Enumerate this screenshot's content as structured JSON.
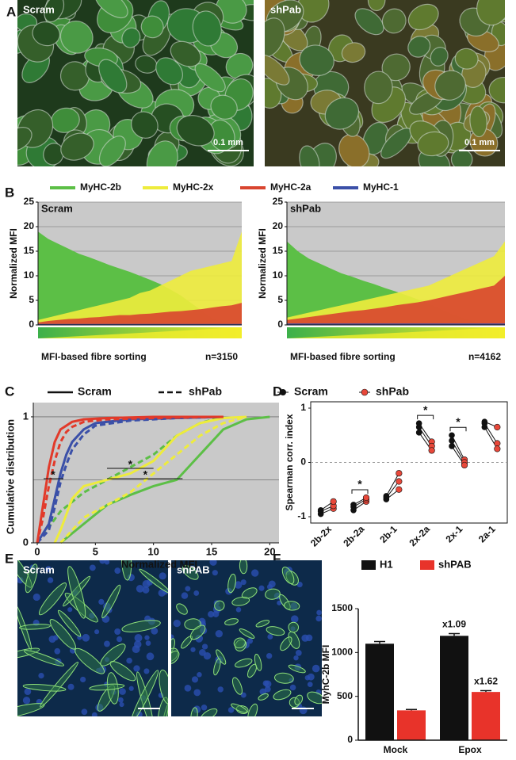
{
  "panel_labels": [
    "A",
    "B",
    "C",
    "D",
    "E",
    "F"
  ],
  "images": [
    {
      "label": "Scram",
      "scale_bar": "0.1 mm"
    },
    {
      "label": "shPab",
      "scale_bar": "0.1 mm"
    },
    {
      "label": "Scram"
    },
    {
      "label": "shPAB"
    }
  ],
  "chart_data": [
    {
      "type": "area",
      "title": "Scram",
      "ylabel": "Normalized MFI",
      "xlabel": "MFI-based fibre sorting",
      "note": "n=3150",
      "ylim": [
        0,
        25
      ],
      "yticks": [
        0,
        5,
        10,
        15,
        20,
        25
      ],
      "grid": true,
      "series": [
        {
          "name": "MyHC-2b",
          "color": "#5cbf46",
          "values": [
            19,
            17.5,
            16.5,
            15.5,
            14.5,
            13.8,
            13,
            12.2,
            11.5,
            10.8,
            10,
            9.2,
            8.3,
            7.2,
            6,
            4.5,
            3,
            1.5,
            0.5,
            0.2,
            0
          ]
        },
        {
          "name": "MyHC-2x",
          "color": "#eeec3c",
          "values": [
            1,
            1.5,
            2,
            2.5,
            3,
            3.5,
            4,
            4.5,
            5,
            5.5,
            6.5,
            7,
            8,
            9,
            10,
            11,
            11.5,
            12,
            12.5,
            13,
            19
          ]
        },
        {
          "name": "MyHC-2a",
          "color": "#d9452f",
          "values": [
            0.5,
            0.8,
            1,
            1.2,
            1.3,
            1.5,
            1.6,
            1.8,
            2,
            2,
            2.2,
            2.3,
            2.5,
            2.7,
            2.8,
            3,
            3.2,
            3.5,
            3.8,
            4,
            4.5
          ]
        },
        {
          "name": "MyHC-1",
          "color": "#3b50a8",
          "values": [
            0.2,
            0.2,
            0.2,
            0.2,
            0.2,
            0.2,
            0.2,
            0.2,
            0.2,
            0.2,
            0.2,
            0.2,
            0.2,
            0.2,
            0.2,
            0.2,
            0.2,
            0.2,
            0.2,
            0.2,
            0.2
          ]
        }
      ]
    },
    {
      "type": "area",
      "title": "shPab",
      "ylabel": "Normalized MFI",
      "xlabel": "MFI-based fibre sorting",
      "note": "n=4162",
      "ylim": [
        0,
        25
      ],
      "yticks": [
        0,
        5,
        10,
        15,
        20,
        25
      ],
      "grid": true,
      "series": [
        {
          "color": "#5cbf46",
          "values": [
            17,
            15,
            13.5,
            12.5,
            11.5,
            10.5,
            9.8,
            9,
            8.3,
            7.5,
            6.8,
            6,
            5.2,
            4.3,
            3.3,
            2.3,
            1.5,
            0.8,
            0.3,
            0.1,
            0
          ]
        },
        {
          "color": "#eeec3c",
          "values": [
            1.5,
            2,
            2.5,
            3,
            3.5,
            4,
            4.5,
            5,
            5.5,
            6,
            6.5,
            7,
            7.5,
            8,
            9,
            10,
            11,
            12,
            13,
            14,
            17
          ]
        },
        {
          "color": "#d9452f",
          "values": [
            1,
            1.3,
            1.6,
            1.9,
            2.2,
            2.5,
            2.8,
            3,
            3.3,
            3.6,
            4,
            4.3,
            4.6,
            5,
            5.5,
            6,
            6.5,
            7,
            7.5,
            8,
            10
          ]
        },
        {
          "color": "#3b50a8",
          "values": [
            0.3,
            0.3,
            0.3,
            0.3,
            0.3,
            0.3,
            0.3,
            0.3,
            0.3,
            0.3,
            0.3,
            0.3,
            0.3,
            0.3,
            0.3,
            0.3,
            0.3,
            0.3,
            0.3,
            0.3,
            0.3
          ]
        }
      ]
    },
    {
      "type": "line",
      "ylabel": "Cumulative distribution",
      "xlabel": "Normalized MFI",
      "xlim": [
        0,
        21
      ],
      "xticks": [
        0,
        5,
        10,
        15,
        20
      ],
      "ylim": [
        0,
        1.05
      ],
      "yticks": [
        0,
        1
      ],
      "ygrid": [
        0.5,
        1
      ],
      "legend": [
        {
          "label": "Scram",
          "dash": false
        },
        {
          "label": "shPab",
          "dash": true
        }
      ],
      "annotations": [
        "*",
        "*",
        "*"
      ],
      "series": [
        {
          "color": "#5cbf46",
          "dash": false,
          "x": [
            2,
            4,
            6,
            8,
            10,
            12,
            14,
            16,
            18,
            20
          ],
          "values": [
            0,
            0.15,
            0.3,
            0.38,
            0.45,
            0.5,
            0.7,
            0.9,
            0.98,
            1
          ]
        },
        {
          "color": "#5cbf46",
          "dash": true,
          "x": [
            0,
            2,
            4,
            6,
            8,
            10,
            12,
            14,
            16
          ],
          "values": [
            0,
            0.25,
            0.4,
            0.5,
            0.6,
            0.7,
            0.85,
            0.95,
            1
          ]
        },
        {
          "color": "#eeec3c",
          "dash": false,
          "x": [
            1.5,
            2,
            3,
            4,
            6,
            8,
            10,
            12,
            14,
            16,
            18
          ],
          "values": [
            0,
            0.1,
            0.35,
            0.45,
            0.5,
            0.55,
            0.65,
            0.85,
            0.95,
            0.99,
            1
          ]
        },
        {
          "color": "#eeec3c",
          "dash": true,
          "x": [
            2,
            3,
            4,
            6,
            8,
            10,
            12,
            14,
            16,
            18
          ],
          "values": [
            0,
            0.1,
            0.2,
            0.3,
            0.4,
            0.55,
            0.7,
            0.85,
            0.95,
            1
          ]
        },
        {
          "color": "#3b50a8",
          "dash": false,
          "x": [
            0,
            1,
            1.5,
            2,
            2.5,
            3,
            4,
            5,
            8,
            12,
            16
          ],
          "values": [
            0,
            0.15,
            0.35,
            0.55,
            0.7,
            0.8,
            0.9,
            0.95,
            0.98,
            0.99,
            1
          ]
        },
        {
          "color": "#3b50a8",
          "dash": true,
          "x": [
            0,
            1,
            1.5,
            2,
            2.5,
            3,
            4,
            5,
            8,
            12,
            16
          ],
          "values": [
            0,
            0.1,
            0.28,
            0.48,
            0.62,
            0.74,
            0.86,
            0.93,
            0.97,
            0.99,
            1
          ]
        },
        {
          "color": "#e23a2a",
          "dash": false,
          "x": [
            0,
            0.5,
            1,
            1.5,
            2,
            3,
            4,
            6,
            10,
            16
          ],
          "values": [
            0,
            0.3,
            0.6,
            0.8,
            0.9,
            0.96,
            0.98,
            0.99,
            1,
            1
          ]
        },
        {
          "color": "#e23a2a",
          "dash": true,
          "x": [
            0,
            0.5,
            1,
            1.5,
            2,
            2.5,
            3,
            4,
            6,
            10,
            16
          ],
          "values": [
            0,
            0.2,
            0.45,
            0.65,
            0.8,
            0.88,
            0.92,
            0.96,
            0.98,
            0.99,
            1
          ]
        }
      ]
    },
    {
      "type": "paired",
      "ylabel": "Spearman corr. index",
      "categories": [
        "2b-2x",
        "2b-2a",
        "2b-1",
        "2x-2a",
        "2x-1",
        "2a-1"
      ],
      "ylim": [
        -1,
        1
      ],
      "yticks": [
        -1,
        0,
        1
      ],
      "annotations": [
        "*",
        "*",
        "*"
      ],
      "series": [
        {
          "name": "Scram",
          "color": "#111111",
          "values": [
            [
              -0.95,
              -0.9,
              -0.88
            ],
            [
              -0.88,
              -0.82,
              -0.78
            ],
            [
              -0.68,
              -0.65,
              -0.62
            ],
            [
              0.72,
              0.65,
              0.55
            ],
            [
              0.5,
              0.4,
              0.3
            ],
            [
              0.75,
              0.72,
              0.65
            ]
          ]
        },
        {
          "name": "shPab",
          "color": "#e8483a",
          "values": [
            [
              -0.85,
              -0.8,
              -0.72
            ],
            [
              -0.72,
              -0.68,
              -0.65
            ],
            [
              -0.5,
              -0.35,
              -0.2
            ],
            [
              0.38,
              0.3,
              0.22
            ],
            [
              0.05,
              0,
              -0.05
            ],
            [
              0.65,
              0.35,
              0.25
            ]
          ]
        }
      ]
    },
    {
      "type": "bar",
      "ylabel": "MyhC-2b MFI",
      "categories": [
        "Mock",
        "Epox"
      ],
      "ylim": [
        0,
        1500
      ],
      "yticks": [
        0,
        500,
        1000,
        1500
      ],
      "annotations": [
        "x1.09",
        "x1.62"
      ],
      "series": [
        {
          "name": "H1",
          "color": "#111111",
          "values": [
            1100,
            1190
          ],
          "errors": [
            25,
            25
          ]
        },
        {
          "name": "shPAB",
          "color": "#e8332a",
          "values": [
            340,
            550
          ],
          "errors": [
            10,
            15
          ]
        }
      ]
    }
  ]
}
